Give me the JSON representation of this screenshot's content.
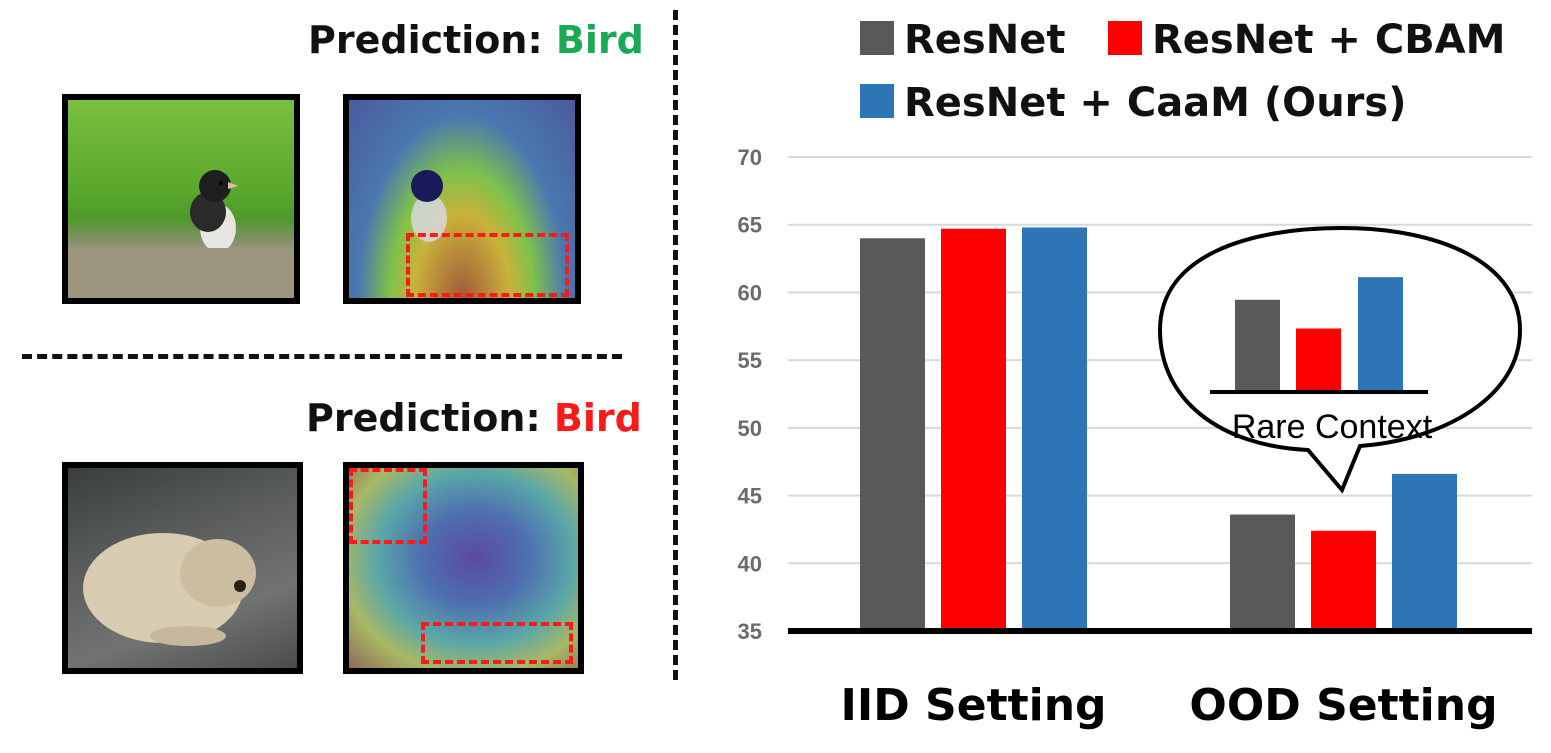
{
  "left_panel": {
    "top": {
      "prediction_label": "Prediction:",
      "prediction_value": "Bird",
      "prediction_color": "#1aaa55"
    },
    "bottom": {
      "prediction_label": "Prediction:",
      "prediction_value": "Bird",
      "prediction_color": "#ff1a1a"
    }
  },
  "chart_data": {
    "type": "bar",
    "categories": [
      "IID Setting",
      "OOD Setting"
    ],
    "series": [
      {
        "name": "ResNet",
        "color": "#595959",
        "values": [
          64.0,
          43.6
        ]
      },
      {
        "name": "ResNet + CBAM",
        "color": "#ff0000",
        "values": [
          64.7,
          42.4
        ]
      },
      {
        "name": "ResNet + CaaM (Ours)",
        "color": "#2e75b6",
        "values": [
          64.8,
          46.6
        ]
      }
    ],
    "ylim": [
      35,
      70
    ],
    "yticks": [
      35,
      40,
      45,
      50,
      55,
      60,
      65,
      70
    ],
    "grid": true,
    "legend": "top",
    "inset": {
      "label": "Rare Context",
      "values": [
        60.6,
        57.3,
        63.2
      ]
    }
  }
}
